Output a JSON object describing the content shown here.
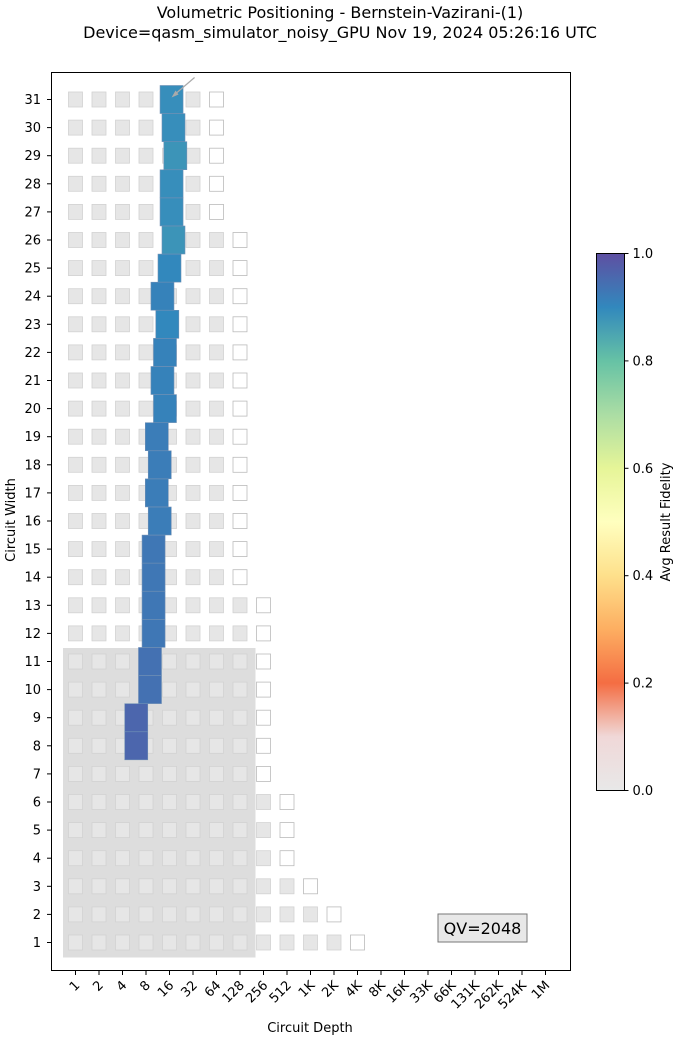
{
  "chart_data": {
    "type": "heatmap",
    "title": "Volumetric Positioning - Bernstein-Vazirani-(1)",
    "subtitle": "Device=qasm_simulator_noisy_GPU  Nov 19, 2024 05:26:16 UTC",
    "xlabel": "Circuit Depth",
    "ylabel": "Circuit Width",
    "x_ticks": [
      "1",
      "2",
      "4",
      "8",
      "16",
      "32",
      "64",
      "128",
      "256",
      "512",
      "1K",
      "2K",
      "4K",
      "8K",
      "16K",
      "33K",
      "66K",
      "131K",
      "262K",
      "524K",
      "1M"
    ],
    "y_ticks": [
      1,
      2,
      3,
      4,
      5,
      6,
      7,
      8,
      9,
      10,
      11,
      12,
      13,
      14,
      15,
      16,
      17,
      18,
      19,
      20,
      21,
      22,
      23,
      24,
      25,
      26,
      27,
      28,
      29,
      30,
      31
    ],
    "colorbar": {
      "label": "Avg Result Fidelity",
      "range": [
        0.0,
        1.0
      ],
      "ticks": [
        0.0,
        0.2,
        0.4,
        0.6,
        0.8,
        1.0
      ],
      "colormap": "Spectral"
    },
    "annotation": "QV=2048",
    "qv_region": {
      "max_width": 11,
      "max_depth": 128
    },
    "background_max_depth": [
      {
        "width": 1,
        "max_depth": "4K"
      },
      {
        "width": 2,
        "max_depth": "2K"
      },
      {
        "width": 3,
        "max_depth": "1K"
      },
      {
        "width": 4,
        "max_depth": "512"
      },
      {
        "width": 5,
        "max_depth": "512"
      },
      {
        "width": 6,
        "max_depth": "512"
      },
      {
        "width": 7,
        "max_depth": "256"
      },
      {
        "width": 8,
        "max_depth": "256"
      },
      {
        "width": 9,
        "max_depth": "256"
      },
      {
        "width": 10,
        "max_depth": "256"
      },
      {
        "width": 11,
        "max_depth": "256"
      },
      {
        "width": 12,
        "max_depth": "256"
      },
      {
        "width": 13,
        "max_depth": "256"
      },
      {
        "width": 14,
        "max_depth": "128"
      },
      {
        "width": 15,
        "max_depth": "128"
      },
      {
        "width": 16,
        "max_depth": "128"
      },
      {
        "width": 17,
        "max_depth": "128"
      },
      {
        "width": 18,
        "max_depth": "128"
      },
      {
        "width": 19,
        "max_depth": "128"
      },
      {
        "width": 20,
        "max_depth": "128"
      },
      {
        "width": 21,
        "max_depth": "128"
      },
      {
        "width": 22,
        "max_depth": "128"
      },
      {
        "width": 23,
        "max_depth": "128"
      },
      {
        "width": 24,
        "max_depth": "128"
      },
      {
        "width": 25,
        "max_depth": "128"
      },
      {
        "width": 26,
        "max_depth": "128"
      },
      {
        "width": 27,
        "max_depth": "64"
      },
      {
        "width": 28,
        "max_depth": "64"
      },
      {
        "width": 29,
        "max_depth": "64"
      },
      {
        "width": 30,
        "max_depth": "64"
      },
      {
        "width": 31,
        "max_depth": "64"
      }
    ],
    "points": [
      {
        "width": 8,
        "depth": 6,
        "fidelity": 0.96
      },
      {
        "width": 9,
        "depth": 6,
        "fidelity": 0.96
      },
      {
        "width": 10,
        "depth": 9,
        "fidelity": 0.94
      },
      {
        "width": 11,
        "depth": 9,
        "fidelity": 0.94
      },
      {
        "width": 12,
        "depth": 10,
        "fidelity": 0.93
      },
      {
        "width": 13,
        "depth": 10,
        "fidelity": 0.93
      },
      {
        "width": 14,
        "depth": 10,
        "fidelity": 0.93
      },
      {
        "width": 15,
        "depth": 10,
        "fidelity": 0.93
      },
      {
        "width": 16,
        "depth": 12,
        "fidelity": 0.92
      },
      {
        "width": 17,
        "depth": 11,
        "fidelity": 0.92
      },
      {
        "width": 18,
        "depth": 12,
        "fidelity": 0.92
      },
      {
        "width": 19,
        "depth": 11,
        "fidelity": 0.92
      },
      {
        "width": 20,
        "depth": 14,
        "fidelity": 0.91
      },
      {
        "width": 21,
        "depth": 13,
        "fidelity": 0.91
      },
      {
        "width": 22,
        "depth": 14,
        "fidelity": 0.91
      },
      {
        "width": 23,
        "depth": 15,
        "fidelity": 0.9
      },
      {
        "width": 24,
        "depth": 13,
        "fidelity": 0.91
      },
      {
        "width": 25,
        "depth": 16,
        "fidelity": 0.9
      },
      {
        "width": 26,
        "depth": 18,
        "fidelity": 0.88
      },
      {
        "width": 27,
        "depth": 17,
        "fidelity": 0.89
      },
      {
        "width": 28,
        "depth": 17,
        "fidelity": 0.89
      },
      {
        "width": 29,
        "depth": 19,
        "fidelity": 0.88
      },
      {
        "width": 30,
        "depth": 18,
        "fidelity": 0.89
      },
      {
        "width": 31,
        "depth": 17,
        "fidelity": 0.89
      }
    ]
  }
}
